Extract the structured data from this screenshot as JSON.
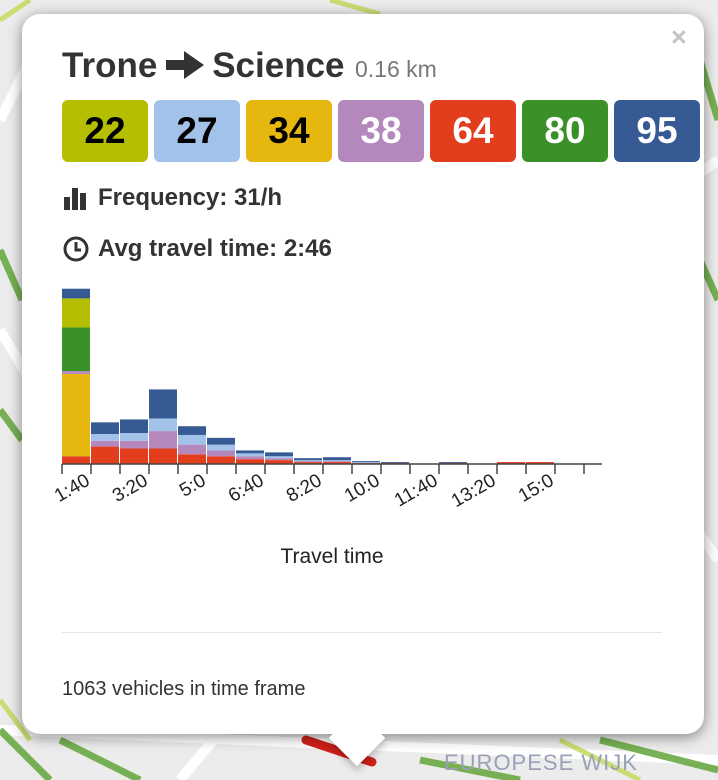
{
  "popup": {
    "close_label": "×",
    "origin": "Trone",
    "destination": "Science",
    "distance": "0.16 km",
    "lines": [
      {
        "number": "22",
        "bg": "#b5be00",
        "fg": "#000000"
      },
      {
        "number": "27",
        "bg": "#a3c2e9",
        "fg": "#000000"
      },
      {
        "number": "34",
        "bg": "#e6b70e",
        "fg": "#000000"
      },
      {
        "number": "38",
        "bg": "#b488bd",
        "fg": "#ffffff"
      },
      {
        "number": "64",
        "bg": "#e23e1e",
        "fg": "#ffffff"
      },
      {
        "number": "80",
        "bg": "#3a9127",
        "fg": "#ffffff"
      },
      {
        "number": "95",
        "bg": "#355a94",
        "fg": "#ffffff"
      }
    ],
    "frequency_label": "Frequency: 31/h",
    "travel_time_label": "Avg travel time: 2:46",
    "footer": "1063 vehicles in time frame",
    "icons": {
      "arrow": "arrow-right-icon",
      "frequency": "bar-chart-icon",
      "time": "clock-icon",
      "close": "close-icon"
    }
  },
  "map": {
    "label": "EUROPESE WIJK"
  },
  "chart_data": {
    "type": "bar",
    "stacked": true,
    "xlabel": "Travel time",
    "ylabel": "",
    "tick_labels": [
      "1:40",
      "3:20",
      "5:0",
      "6:40",
      "8:20",
      "10:0",
      "11:40",
      "13:20",
      "15:0"
    ],
    "x_start_seconds": 80,
    "bin_width_seconds": 20,
    "ylim": [
      0,
      190
    ],
    "series": [
      {
        "name": "64",
        "color": "#e23e1e",
        "values": [
          8,
          18,
          16,
          16,
          10,
          8,
          5,
          4,
          2,
          2,
          1,
          1,
          0,
          1,
          0,
          2,
          2
        ]
      },
      {
        "name": "34",
        "color": "#e6b70e",
        "values": [
          85,
          0,
          0,
          0,
          0,
          0,
          0,
          0,
          0,
          0,
          0,
          0,
          0,
          0,
          0,
          0,
          0
        ]
      },
      {
        "name": "38",
        "color": "#b488bd",
        "values": [
          3,
          6,
          8,
          18,
          10,
          6,
          3,
          2,
          1,
          1,
          0,
          0,
          0,
          0,
          0,
          0,
          0
        ]
      },
      {
        "name": "80",
        "color": "#3a9127",
        "values": [
          45,
          0,
          0,
          0,
          0,
          0,
          0,
          0,
          0,
          0,
          0,
          0,
          0,
          0,
          0,
          0,
          0
        ]
      },
      {
        "name": "22",
        "color": "#b5be00",
        "values": [
          30,
          0,
          0,
          0,
          0,
          0,
          0,
          0,
          0,
          0,
          0,
          0,
          0,
          0,
          0,
          0,
          0
        ]
      },
      {
        "name": "27",
        "color": "#a3c2e9",
        "values": [
          0,
          7,
          8,
          13,
          10,
          6,
          3,
          2,
          1,
          1,
          1,
          0,
          0,
          0,
          0,
          0,
          0
        ]
      },
      {
        "name": "95",
        "color": "#355a94",
        "values": [
          10,
          12,
          14,
          30,
          9,
          7,
          3,
          4,
          2,
          3,
          1,
          1,
          0,
          1,
          0,
          0,
          0
        ]
      }
    ]
  }
}
